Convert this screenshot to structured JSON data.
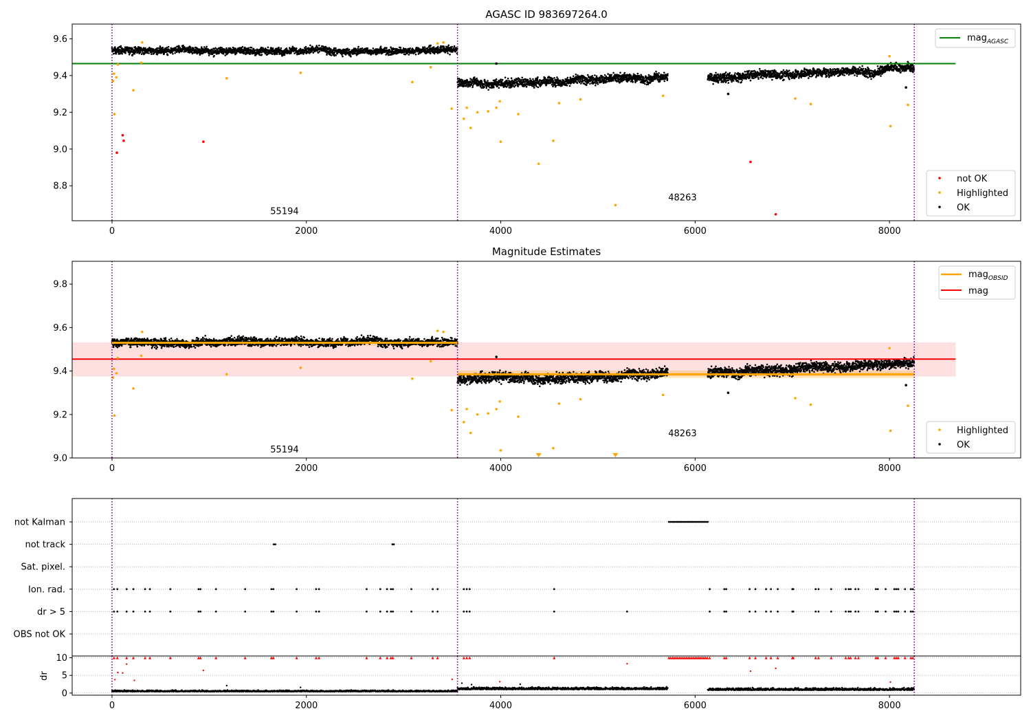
{
  "chart_data": [
    {
      "id": "top",
      "type": "scatter",
      "title": "AGASC ID 983697264.0",
      "xlim": [
        -410,
        9350
      ],
      "ylim": [
        8.61,
        9.68
      ],
      "xticks": [
        0,
        2000,
        4000,
        6000,
        8000
      ],
      "xtick_labels": [
        "0",
        "2000",
        "4000",
        "6000",
        "8000"
      ],
      "yticks": [
        8.8,
        9.0,
        9.2,
        9.4,
        9.6
      ],
      "ytick_labels": [
        "8.8",
        "9.0",
        "9.2",
        "9.4",
        "9.6"
      ],
      "vlines": [
        0,
        3555,
        8255
      ],
      "hlines": [
        {
          "name": "mag_AGASC",
          "y": 9.465,
          "x0": -410,
          "x1": 8680,
          "color": "#008000"
        }
      ],
      "segments": [
        {
          "x0": 0,
          "x1": 3555,
          "level": 9.535,
          "spread": 0.016
        },
        {
          "x0": 3555,
          "x1": 5720,
          "level": 9.36,
          "spread": 0.02,
          "trend": 0.03
        },
        {
          "x0": 6130,
          "x1": 8255,
          "level": 9.39,
          "spread": 0.02,
          "trend": 0.05
        }
      ],
      "series": [
        {
          "name": "not OK",
          "color": "#ff0000",
          "points": [
            [
              50,
              8.98
            ],
            [
              110,
              9.075
            ],
            [
              120,
              9.045
            ],
            [
              940,
              9.04
            ],
            [
              6570,
              8.93
            ],
            [
              6830,
              8.645
            ]
          ]
        },
        {
          "name": "Highlighted",
          "color": "#ffa500",
          "points": [
            [
              10,
              9.37
            ],
            [
              20,
              9.41
            ],
            [
              25,
              9.19
            ],
            [
              45,
              9.39
            ],
            [
              60,
              9.46
            ],
            [
              220,
              9.32
            ],
            [
              300,
              9.47
            ],
            [
              310,
              9.58
            ],
            [
              1180,
              9.385
            ],
            [
              1940,
              9.415
            ],
            [
              3090,
              9.365
            ],
            [
              3280,
              9.445
            ],
            [
              3350,
              9.575
            ],
            [
              3410,
              9.58
            ],
            [
              3495,
              9.22
            ],
            [
              3620,
              9.165
            ],
            [
              3650,
              9.225
            ],
            [
              3690,
              9.115
            ],
            [
              3760,
              9.2
            ],
            [
              3870,
              9.205
            ],
            [
              3955,
              9.225
            ],
            [
              3990,
              9.26
            ],
            [
              4000,
              9.04
            ],
            [
              4180,
              9.19
            ],
            [
              4390,
              8.92
            ],
            [
              4540,
              9.045
            ],
            [
              4600,
              9.25
            ],
            [
              4820,
              9.27
            ],
            [
              5180,
              8.695
            ],
            [
              5670,
              9.29
            ],
            [
              7030,
              9.275
            ],
            [
              7190,
              9.245
            ],
            [
              8000,
              9.505
            ],
            [
              8010,
              9.125
            ],
            [
              8190,
              9.24
            ]
          ]
        },
        {
          "name": "OK",
          "color": "#000000",
          "points": [
            [
              3955,
              9.465
            ],
            [
              6340,
              9.3
            ],
            [
              8170,
              9.335
            ]
          ]
        }
      ],
      "annotations": [
        {
          "text": "55194",
          "x": 1775,
          "y": 8.645
        },
        {
          "text": "48263",
          "x": 5870,
          "y": 8.72
        }
      ],
      "legend_lines": {
        "title": "mag",
        "sub": "AGASC"
      },
      "legend_points": [
        "not OK",
        "Highlighted",
        "OK"
      ]
    },
    {
      "id": "mid",
      "type": "scatter",
      "title": "Magnitude Estimates",
      "xlim": [
        -410,
        9350
      ],
      "ylim": [
        9.0,
        9.905
      ],
      "xticks": [
        0,
        2000,
        4000,
        6000,
        8000
      ],
      "xtick_labels": [
        "0",
        "2000",
        "4000",
        "6000",
        "8000"
      ],
      "yticks": [
        9.0,
        9.2,
        9.4,
        9.6,
        9.8
      ],
      "ytick_labels": [
        "9.0",
        "9.2",
        "9.4",
        "9.6",
        "9.8"
      ],
      "vlines": [
        0,
        3555,
        8255
      ],
      "mag": {
        "name": "mag",
        "y": 9.455,
        "band": [
          9.375,
          9.532
        ],
        "x0": -410,
        "x1": 8680,
        "color": "#ff0000"
      },
      "mag_obsid": [
        {
          "x0": 0,
          "x1": 3555,
          "y": 9.53,
          "band": [
            9.517,
            9.543
          ]
        },
        {
          "x0": 3555,
          "x1": 8255,
          "y": 9.385,
          "band": [
            9.368,
            9.402
          ]
        }
      ],
      "segments": [
        {
          "x0": 0,
          "x1": 3555,
          "level": 9.535,
          "spread": 0.016
        },
        {
          "x0": 3555,
          "x1": 5720,
          "level": 9.36,
          "spread": 0.02,
          "trend": 0.03
        },
        {
          "x0": 6130,
          "x1": 8255,
          "level": 9.39,
          "spread": 0.02,
          "trend": 0.05
        }
      ],
      "series": [
        {
          "name": "Highlighted",
          "color": "#ffa500",
          "points": [
            [
              10,
              9.37
            ],
            [
              20,
              9.41
            ],
            [
              25,
              9.195
            ],
            [
              45,
              9.39
            ],
            [
              60,
              9.46
            ],
            [
              220,
              9.32
            ],
            [
              300,
              9.47
            ],
            [
              310,
              9.58
            ],
            [
              1180,
              9.385
            ],
            [
              1940,
              9.415
            ],
            [
              3090,
              9.365
            ],
            [
              3280,
              9.445
            ],
            [
              3350,
              9.585
            ],
            [
              3410,
              9.58
            ],
            [
              3495,
              9.22
            ],
            [
              3620,
              9.165
            ],
            [
              3650,
              9.225
            ],
            [
              3690,
              9.115
            ],
            [
              3760,
              9.2
            ],
            [
              3870,
              9.205
            ],
            [
              3955,
              9.225
            ],
            [
              3990,
              9.26
            ],
            [
              4000,
              9.035
            ],
            [
              4180,
              9.19
            ],
            [
              4540,
              9.045
            ],
            [
              4600,
              9.25
            ],
            [
              4820,
              9.27
            ],
            [
              5670,
              9.29
            ],
            [
              7030,
              9.275
            ],
            [
              7190,
              9.245
            ],
            [
              8000,
              9.505
            ],
            [
              8010,
              9.125
            ],
            [
              8190,
              9.24
            ]
          ]
        },
        {
          "name": "OK",
          "color": "#000000",
          "points": [
            [
              3955,
              9.465
            ],
            [
              6340,
              9.3
            ],
            [
              8170,
              9.335
            ]
          ]
        }
      ],
      "clipped_markers": [
        4390,
        5180
      ],
      "annotations": [
        {
          "text": "55194",
          "x": 1775,
          "y": 9.025
        },
        {
          "text": "48263",
          "x": 5870,
          "y": 9.1
        }
      ],
      "legend_lines": [
        {
          "title": "mag",
          "sub": "OBSID",
          "color": "#ffa500"
        },
        {
          "title": "mag",
          "sub": "",
          "color": "#ff0000"
        }
      ],
      "legend_points": [
        "Highlighted",
        "OK"
      ]
    },
    {
      "id": "flags",
      "type": "scatter",
      "xlim": [
        -410,
        9350
      ],
      "categories": [
        "not Kalman",
        "not track",
        "Sat. pixel.",
        "Ion. rad.",
        "dr > 5",
        "OBS not OK"
      ],
      "vlines": [
        0,
        3555,
        8255
      ],
      "rows": {
        "not Kalman": {
          "ranges": [
            [
              5730,
              6130
            ]
          ],
          "points": []
        },
        "not track": {
          "ranges": [],
          "points": [
            1665,
            1680,
            2885,
            2900
          ]
        },
        "Sat. pixel.": {
          "ranges": [],
          "points": []
        },
        "Ion. rad.": {
          "ranges": [],
          "points": [
            20,
            55,
            150,
            220,
            340,
            390,
            600,
            890,
            910,
            1070,
            1370,
            1640,
            1660,
            1900,
            2100,
            2130,
            2620,
            2760,
            2830,
            2870,
            2890,
            3080,
            3300,
            3350,
            3620,
            3650,
            3680,
            4550,
            6150,
            6300,
            6320,
            6560,
            6620,
            6730,
            6780,
            6850,
            7000,
            7010,
            7240,
            7270,
            7400,
            7550,
            7580,
            7600,
            7650,
            7680,
            7860,
            7880,
            7960,
            8050,
            8070,
            8090,
            8160,
            8220,
            8240
          ]
        },
        "dr > 5": {
          "ranges": [],
          "points": [
            20,
            55,
            150,
            220,
            340,
            390,
            600,
            890,
            910,
            1070,
            1370,
            1640,
            1660,
            1900,
            2100,
            2130,
            2620,
            2760,
            2830,
            2870,
            2890,
            3080,
            3300,
            3350,
            3620,
            3650,
            3680,
            4550,
            5300,
            6150,
            6300,
            6320,
            6560,
            6620,
            6730,
            6780,
            6850,
            7000,
            7010,
            7240,
            7270,
            7400,
            7550,
            7580,
            7600,
            7650,
            7680,
            7860,
            7880,
            7960,
            8050,
            8070,
            8090,
            8160,
            8220,
            8240
          ]
        },
        "OBS not OK": {
          "ranges": [],
          "points": []
        }
      }
    },
    {
      "id": "dr",
      "type": "scatter",
      "ylabel": "dr",
      "xlim": [
        -410,
        9350
      ],
      "ylim": [
        -0.6,
        10.5
      ],
      "xticks": [
        0,
        2000,
        4000,
        6000,
        8000
      ],
      "xtick_labels": [
        "0",
        "2000",
        "4000",
        "6000",
        "8000"
      ],
      "yticks": [
        0,
        5,
        10
      ],
      "ytick_labels": [
        "0",
        "5",
        "10"
      ],
      "vlines": [
        0,
        3555,
        8255
      ],
      "segments": [
        {
          "x0": 0,
          "x1": 3555,
          "level": 0.4,
          "spread": 0.3
        },
        {
          "x0": 3555,
          "x1": 5720,
          "level": 1.0,
          "spread": 0.5
        },
        {
          "x0": 6130,
          "x1": 8255,
          "level": 0.8,
          "spread": 0.5
        }
      ],
      "clipped_x": [
        20,
        55,
        150,
        220,
        340,
        390,
        600,
        890,
        910,
        1070,
        1370,
        1640,
        1660,
        1900,
        2100,
        2130,
        2620,
        2760,
        2830,
        2870,
        2890,
        3080,
        3300,
        3350,
        3620,
        3650,
        3680,
        4550,
        6150,
        6300,
        6320,
        6560,
        6620,
        6730,
        6780,
        6850,
        7000,
        7010,
        7240,
        7270,
        7400,
        7550,
        7580,
        7600,
        7650,
        7680,
        7860,
        7880,
        7960,
        8050,
        8070,
        8090,
        8160,
        8220,
        8240
      ],
      "clipped_range": [
        5730,
        6130
      ],
      "red_points": [
        [
          30,
          3.8
        ],
        [
          60,
          5.8
        ],
        [
          110,
          5.7
        ],
        [
          150,
          8.2
        ],
        [
          230,
          3.6
        ],
        [
          940,
          6.4
        ],
        [
          3500,
          3.9
        ],
        [
          3990,
          3.2
        ],
        [
          5300,
          8.3
        ],
        [
          6570,
          6.2
        ],
        [
          6830,
          7.0
        ],
        [
          8010,
          3.1
        ]
      ],
      "black_points": [
        [
          1180,
          2.1
        ],
        [
          1940,
          1.6
        ],
        [
          3600,
          2.8
        ],
        [
          3700,
          2.4
        ],
        [
          4200,
          2.5
        ]
      ]
    }
  ]
}
